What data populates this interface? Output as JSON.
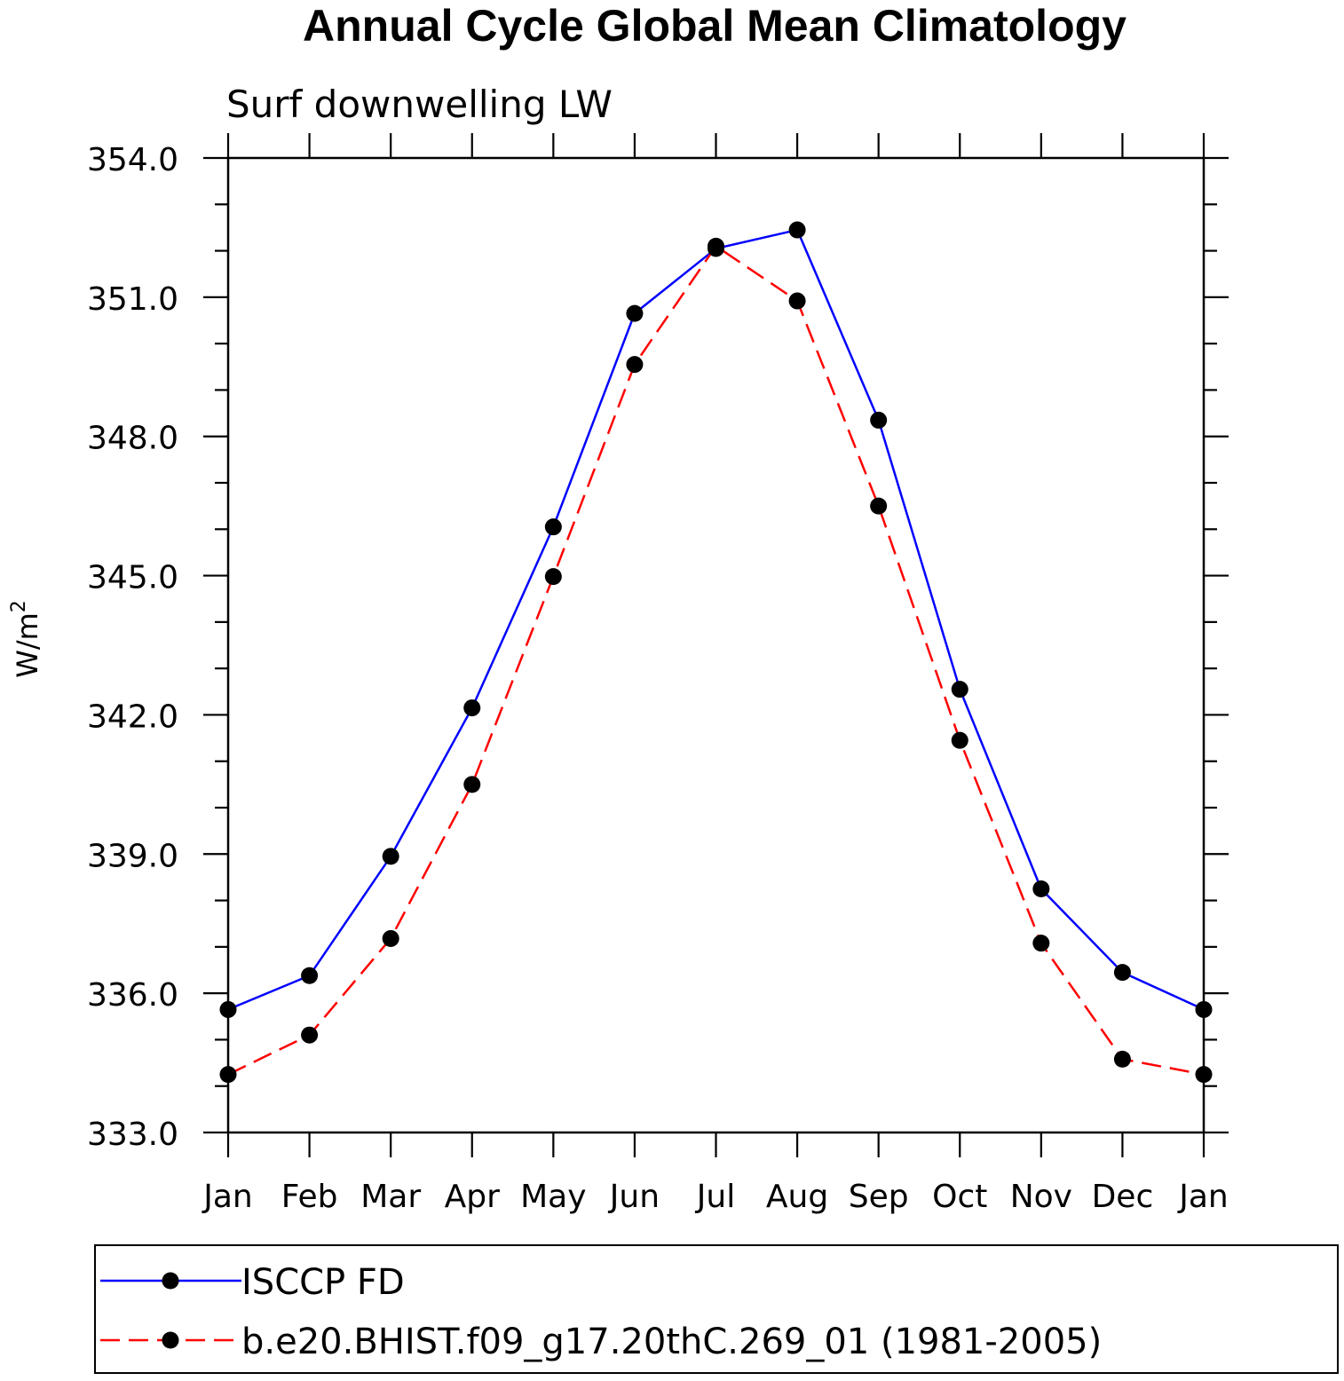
{
  "chart_data": {
    "type": "line",
    "title": "Annual Cycle Global Mean Climatology",
    "subtitle": "Surf downwelling LW",
    "ylabel": "W/m",
    "ylabel_superscript": "2",
    "xlabel": "",
    "categories": [
      "Jan",
      "Feb",
      "Mar",
      "Apr",
      "May",
      "Jun",
      "Jul",
      "Aug",
      "Sep",
      "Oct",
      "Nov",
      "Dec",
      "Jan"
    ],
    "ylim": [
      333.0,
      354.0
    ],
    "yticks": [
      "333.0",
      "336.0",
      "339.0",
      "342.0",
      "345.0",
      "348.0",
      "351.0",
      "354.0"
    ],
    "grid": false,
    "legend_position": "bottom",
    "series": [
      {
        "name": "ISCCP FD",
        "color": "#0000ff",
        "line_style": "solid",
        "marker": "filled-circle",
        "values": [
          335.65,
          336.38,
          338.95,
          342.15,
          346.05,
          350.65,
          352.05,
          352.45,
          348.35,
          342.55,
          338.25,
          336.45,
          335.65
        ]
      },
      {
        "name": "b.e20.BHIST.f09_g17.20thC.269_01 (1981-2005)",
        "color": "#ff0000",
        "line_style": "dashed",
        "marker": "filled-circle",
        "values": [
          334.25,
          335.1,
          337.18,
          340.5,
          344.98,
          349.55,
          352.1,
          350.92,
          346.5,
          341.45,
          337.08,
          334.58,
          334.25
        ]
      }
    ]
  }
}
